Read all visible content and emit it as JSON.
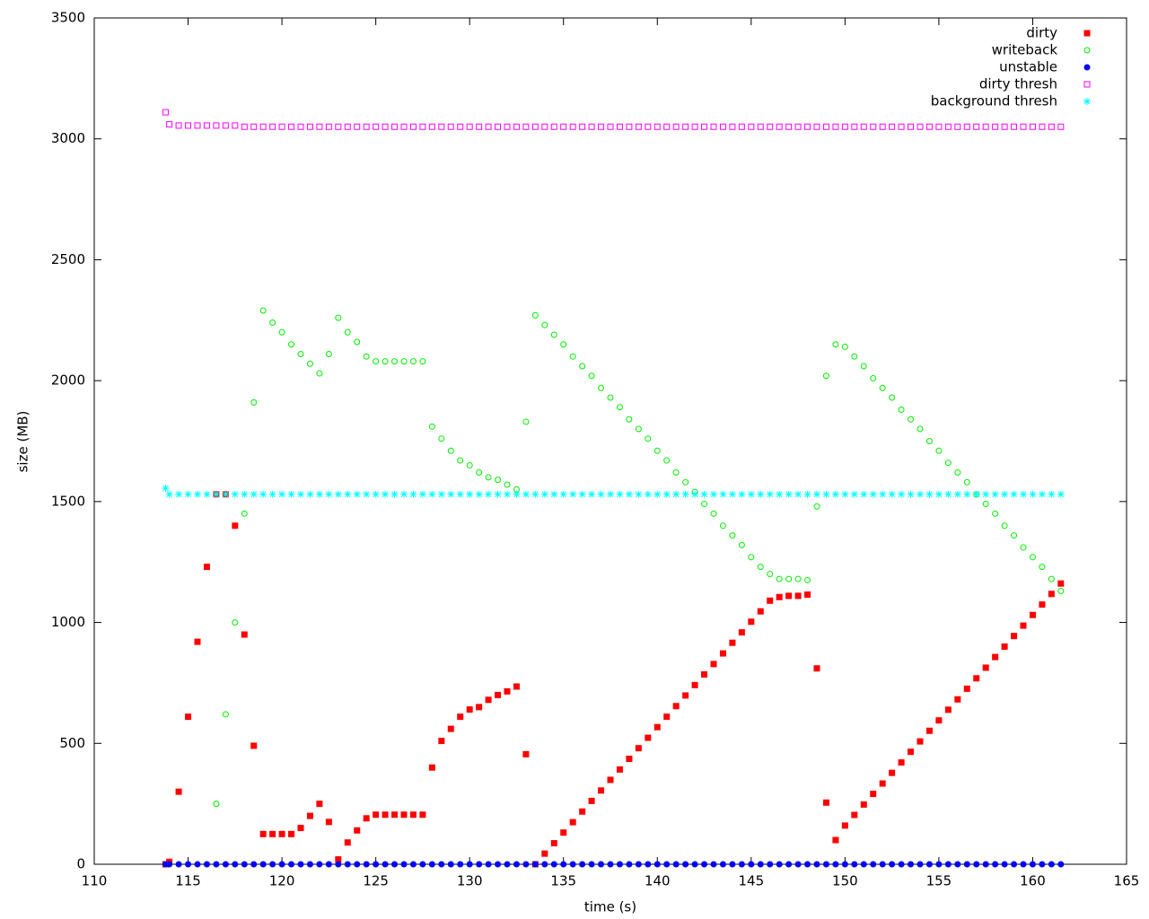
{
  "chart_data": {
    "type": "scatter",
    "xlabel": "time (s)",
    "ylabel": "size (MB)",
    "xlim": [
      110,
      165
    ],
    "xticks": [
      110,
      115,
      120,
      125,
      130,
      135,
      140,
      145,
      150,
      155,
      160,
      165
    ],
    "ylim": [
      0,
      3500
    ],
    "yticks": [
      0,
      500,
      1000,
      1500,
      2000,
      2500,
      3000,
      3500
    ],
    "grid": false,
    "legend": "top-right",
    "x": [
      113.8,
      114,
      114.5,
      115,
      115.5,
      116,
      116.5,
      117,
      117.5,
      118,
      118.5,
      119,
      119.5,
      120,
      120.5,
      121,
      121.5,
      122,
      122.5,
      123,
      123.5,
      124,
      124.5,
      125,
      125.5,
      126,
      126.5,
      127,
      127.5,
      128,
      128.5,
      129,
      129.5,
      130,
      130.5,
      131,
      131.5,
      132,
      132.5,
      133,
      133.5,
      134,
      134.5,
      135,
      135.5,
      136,
      136.5,
      137,
      137.5,
      138,
      138.5,
      139,
      139.5,
      140,
      140.5,
      141,
      141.5,
      142,
      142.5,
      143,
      143.5,
      144,
      144.5,
      145,
      145.5,
      146,
      146.5,
      147,
      147.5,
      148,
      148.5,
      149,
      149.5,
      150,
      150.5,
      151,
      151.5,
      152,
      152.5,
      153,
      153.5,
      154,
      154.5,
      155,
      155.5,
      156,
      156.5,
      157,
      157.5,
      158,
      158.5,
      159,
      159.5,
      160,
      160.5,
      161,
      161.5
    ],
    "series": [
      {
        "name": "dirty",
        "color": "#ff0000",
        "marker": "filled-square",
        "values": [
          0,
          10,
          300,
          610,
          920,
          1230,
          1530,
          1530,
          1400,
          950,
          490,
          125,
          125,
          125,
          125,
          150,
          200,
          250,
          175,
          20,
          90,
          140,
          190,
          205,
          205,
          205,
          205,
          205,
          205,
          400,
          510,
          560,
          610,
          640,
          650,
          680,
          700,
          715,
          735,
          455,
          0,
          44,
          87,
          131,
          174,
          218,
          262,
          305,
          349,
          392,
          436,
          480,
          523,
          567,
          610,
          654,
          698,
          741,
          785,
          828,
          872,
          916,
          959,
          1003,
          1046,
          1090,
          1105,
          1110,
          1110,
          1115,
          810,
          255,
          100,
          160,
          204,
          247,
          291,
          334,
          378,
          421,
          465,
          508,
          552,
          595,
          639,
          682,
          726,
          769,
          813,
          857,
          900,
          944,
          987,
          1031,
          1074,
          1118,
          1161
        ]
      },
      {
        "name": "writeback",
        "color": "#00ee00",
        "marker": "open-circle",
        "values": [
          null,
          null,
          null,
          null,
          null,
          null,
          250,
          620,
          1000,
          1450,
          1910,
          2290,
          2240,
          2200,
          2150,
          2110,
          2070,
          2030,
          2110,
          2260,
          2200,
          2160,
          2100,
          2080,
          2080,
          2080,
          2080,
          2080,
          2080,
          1810,
          1760,
          1710,
          1670,
          1650,
          1620,
          1600,
          1590,
          1570,
          1550,
          1830,
          2270,
          2230,
          2190,
          2150,
          2100,
          2060,
          2020,
          1970,
          1930,
          1890,
          1840,
          1800,
          1760,
          1710,
          1670,
          1620,
          1580,
          1540,
          1490,
          1450,
          1400,
          1360,
          1320,
          1270,
          1230,
          1200,
          1180,
          1180,
          1180,
          1175,
          1480,
          2020,
          2150,
          2140,
          2100,
          2060,
          2010,
          1970,
          1930,
          1880,
          1840,
          1800,
          1750,
          1710,
          1660,
          1620,
          1580,
          1530,
          1490,
          1450,
          1400,
          1360,
          1310,
          1270,
          1230,
          1180,
          1130
        ]
      },
      {
        "name": "unstable",
        "color": "#0000ff",
        "marker": "filled-circle",
        "values": [
          0,
          0,
          0,
          0,
          0,
          0,
          0,
          0,
          0,
          0,
          0,
          0,
          0,
          0,
          0,
          0,
          0,
          0,
          0,
          0,
          0,
          0,
          0,
          0,
          0,
          0,
          0,
          0,
          0,
          0,
          0,
          0,
          0,
          0,
          0,
          0,
          0,
          0,
          0,
          0,
          0,
          0,
          0,
          0,
          0,
          0,
          0,
          0,
          0,
          0,
          0,
          0,
          0,
          0,
          0,
          0,
          0,
          0,
          0,
          0,
          0,
          0,
          0,
          0,
          0,
          0,
          0,
          0,
          0,
          0,
          0,
          0,
          0,
          0,
          0,
          0,
          0,
          0,
          0,
          0,
          0,
          0,
          0,
          0,
          0,
          0,
          0,
          0,
          0,
          0,
          0,
          0,
          0,
          0,
          0,
          0,
          0
        ]
      },
      {
        "name": "dirty thresh",
        "color": "#ff00ff",
        "marker": "open-square",
        "values": [
          3110,
          3060,
          3055,
          3055,
          3055,
          3055,
          3055,
          3055,
          3055,
          3050,
          3050,
          3050,
          3050,
          3050,
          3050,
          3050,
          3050,
          3050,
          3050,
          3050,
          3050,
          3050,
          3050,
          3050,
          3050,
          3050,
          3050,
          3050,
          3050,
          3050,
          3050,
          3050,
          3050,
          3050,
          3050,
          3050,
          3050,
          3050,
          3050,
          3050,
          3050,
          3050,
          3050,
          3050,
          3050,
          3050,
          3050,
          3050,
          3050,
          3050,
          3050,
          3050,
          3050,
          3050,
          3050,
          3050,
          3050,
          3050,
          3050,
          3050,
          3050,
          3050,
          3050,
          3050,
          3050,
          3050,
          3050,
          3050,
          3050,
          3050,
          3050,
          3050,
          3050,
          3050,
          3050,
          3050,
          3050,
          3050,
          3050,
          3050,
          3050,
          3050,
          3050,
          3050,
          3050,
          3050,
          3050,
          3050,
          3050,
          3050,
          3050,
          3050,
          3050,
          3050,
          3050,
          3050,
          3050
        ]
      },
      {
        "name": "background thresh",
        "color": "#00ffff",
        "marker": "star",
        "values": [
          1555,
          1530,
          1530,
          1530,
          1530,
          1530,
          1530,
          1530,
          1530,
          1530,
          1530,
          1530,
          1530,
          1530,
          1530,
          1530,
          1530,
          1530,
          1530,
          1530,
          1530,
          1530,
          1530,
          1530,
          1530,
          1530,
          1530,
          1530,
          1530,
          1530,
          1530,
          1530,
          1530,
          1530,
          1530,
          1530,
          1530,
          1530,
          1530,
          1530,
          1530,
          1530,
          1530,
          1530,
          1530,
          1530,
          1530,
          1530,
          1530,
          1530,
          1530,
          1530,
          1530,
          1530,
          1530,
          1530,
          1530,
          1530,
          1530,
          1530,
          1530,
          1530,
          1530,
          1530,
          1530,
          1530,
          1530,
          1530,
          1530,
          1530,
          1530,
          1530,
          1530,
          1530,
          1530,
          1530,
          1530,
          1530,
          1530,
          1530,
          1530,
          1530,
          1530,
          1530,
          1530,
          1530,
          1530,
          1530,
          1530,
          1530,
          1530,
          1530,
          1530,
          1530,
          1530,
          1530,
          1530
        ]
      }
    ]
  }
}
